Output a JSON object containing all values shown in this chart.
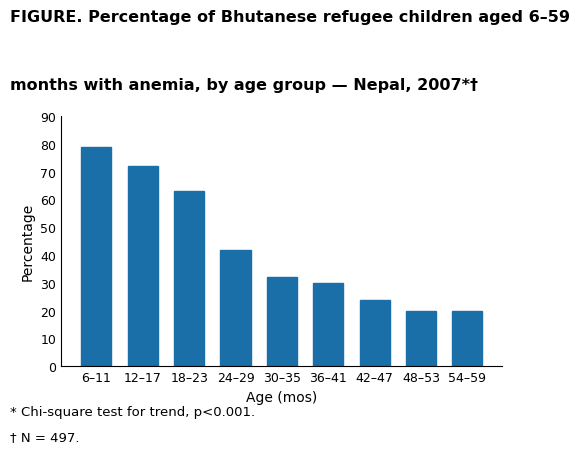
{
  "categories": [
    "6–11",
    "12–17",
    "18–23",
    "24–29",
    "30–35",
    "36–41",
    "42–47",
    "48–53",
    "54–59"
  ],
  "values": [
    79,
    72,
    63,
    42,
    32,
    30,
    24,
    20,
    20
  ],
  "bar_color": "#1a6fa8",
  "title_line1": "FIGURE. Percentage of Bhutanese refugee children aged 6–59",
  "title_line2": "months with anemia, by age group — Nepal, 2007*†",
  "ylabel": "Percentage",
  "xlabel": "Age (mos)",
  "ylim": [
    0,
    90
  ],
  "yticks": [
    0,
    10,
    20,
    30,
    40,
    50,
    60,
    70,
    80,
    90
  ],
  "footnote1": "* Chi-square test for trend, p<0.001.",
  "footnote2": "† N = 497.",
  "background_color": "#ffffff",
  "title_fontsize": 11.5,
  "axis_fontsize": 10,
  "tick_fontsize": 9,
  "footnote_fontsize": 9.5
}
